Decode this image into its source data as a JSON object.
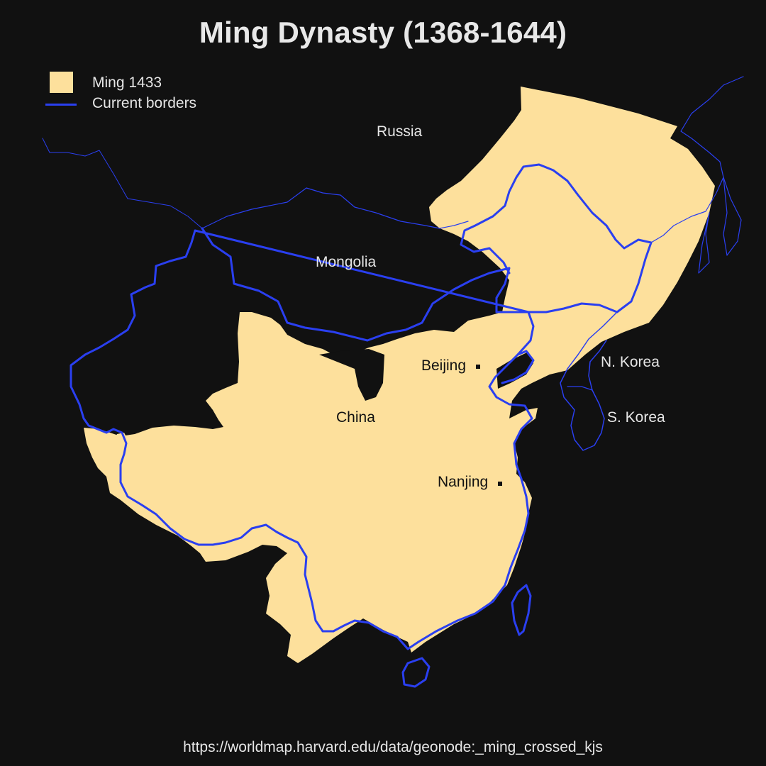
{
  "title": "Ming Dynasty (1368-1644)",
  "legend": {
    "items": [
      {
        "label": "Ming 1433",
        "kind": "fill",
        "color": "#fde09c"
      },
      {
        "label": "Current borders",
        "kind": "line",
        "color": "#2a3ff0"
      }
    ]
  },
  "labels": {
    "russia": "Russia",
    "mongolia": "Mongolia",
    "china": "China",
    "north_korea": "N. Korea",
    "south_korea": "S. Korea"
  },
  "cities": {
    "beijing": "Beijing",
    "nanjing": "Nanjing"
  },
  "source": "https://worldmap.harvard.edu/data/geonode:_ming_crossed_kjs",
  "colors": {
    "background": "#111111",
    "ming_fill": "#fde09c",
    "border": "#2a3ff0"
  }
}
